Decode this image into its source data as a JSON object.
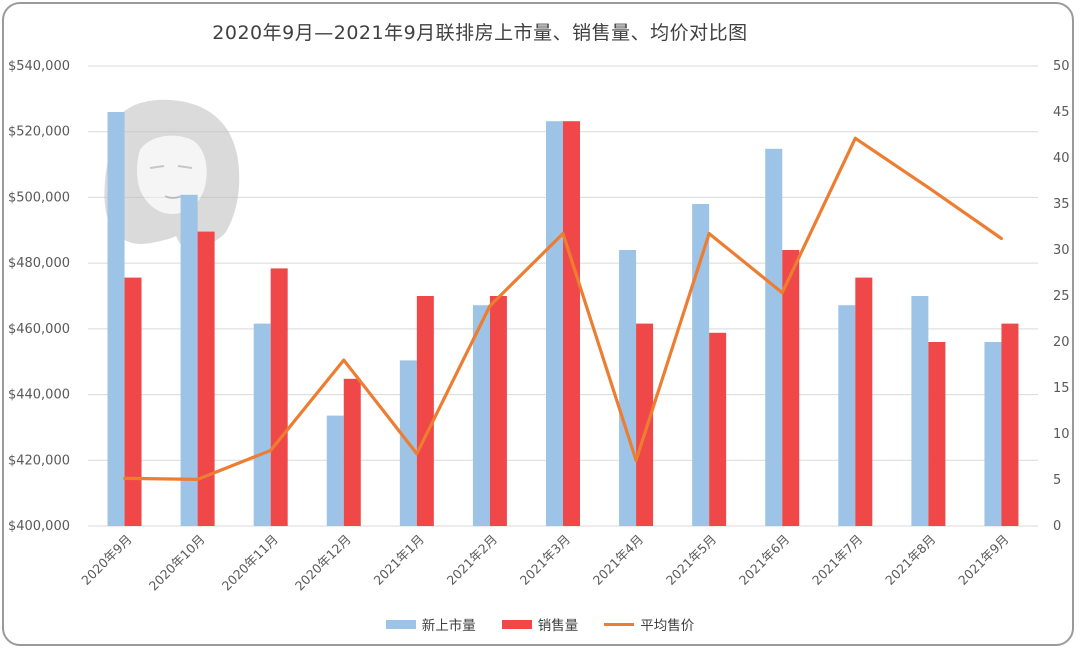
{
  "chart_data": {
    "type": "bar",
    "title": "2020年9月—2021年9月联排房上市量、销售量、均价对比图",
    "categories": [
      "2020年9月",
      "2020年10月",
      "2020年11月",
      "2020年12月",
      "2021年1月",
      "2021年2月",
      "2021年3月",
      "2021年4月",
      "2021年5月",
      "2021年6月",
      "2021年7月",
      "2021年8月",
      "2021年9月"
    ],
    "series": [
      {
        "name": "新上市量",
        "axis": "right",
        "kind": "bar",
        "color": "#9DC3E6",
        "values": [
          45,
          36,
          22,
          12,
          18,
          24,
          44,
          30,
          35,
          41,
          24,
          25,
          20
        ]
      },
      {
        "name": "销售量",
        "axis": "right",
        "kind": "bar",
        "color": "#F04848",
        "values": [
          27,
          32,
          28,
          16,
          25,
          25,
          44,
          22,
          21,
          30,
          27,
          20,
          22
        ]
      },
      {
        "name": "平均售价",
        "axis": "left",
        "kind": "line",
        "color": "#ED7D31",
        "values": [
          414500,
          414200,
          423000,
          450500,
          422000,
          467000,
          489000,
          420000,
          489000,
          471000,
          518000,
          503000,
          487500
        ]
      }
    ],
    "left_axis": {
      "min": 400000,
      "max": 540000,
      "step": 20000,
      "tick_labels": [
        "$400,000",
        "$420,000",
        "$440,000",
        "$460,000",
        "$480,000",
        "$500,000",
        "$520,000",
        "$540,000"
      ]
    },
    "right_axis": {
      "min": 0,
      "max": 50,
      "step": 5,
      "tick_labels": [
        "0",
        "5",
        "10",
        "15",
        "20",
        "25",
        "30",
        "35",
        "40",
        "45",
        "50"
      ]
    },
    "grid": true,
    "legend_position": "bottom"
  }
}
